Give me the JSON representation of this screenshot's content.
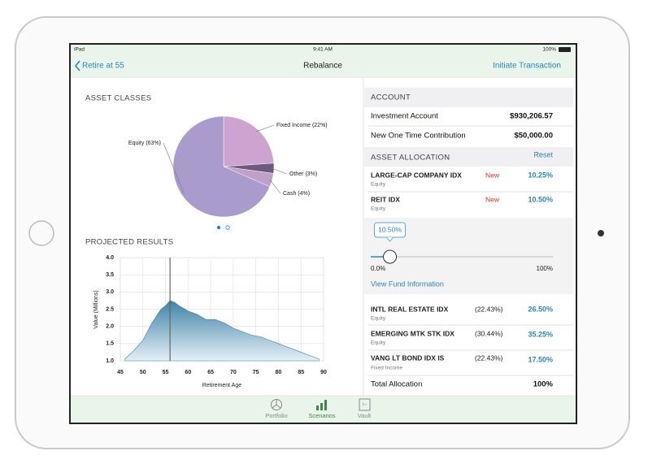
{
  "status_bar": {
    "device": "iPad",
    "time": "9:41 AM",
    "battery": "100%"
  },
  "nav_bar": {
    "back": "Retire at 55",
    "title": "Rebalance",
    "action": "Initiate Transaction"
  },
  "chart_data": [
    {
      "type": "pie",
      "title": "ASSET CLASSES",
      "values": [
        22,
        3,
        4,
        63
      ],
      "value_labels": [
        "Fixed Income (22%)",
        "Other (3%)",
        "Cash (4%)",
        "Equity (63%)"
      ],
      "colors": [
        "#cda3cf",
        "#6e5a7e",
        "#bfa0c8",
        "#a99bcb"
      ]
    },
    {
      "type": "area",
      "title": "PROJECTED RESULTS",
      "y_label": "Value (Millions)",
      "x_label": "Retirement Age",
      "x": [
        46,
        48,
        50,
        52,
        54,
        55,
        56,
        57,
        58,
        60,
        62,
        64,
        66,
        68,
        70,
        72,
        74,
        76,
        78,
        80,
        82,
        84,
        86,
        88,
        89
      ],
      "values": [
        1.05,
        1.3,
        1.6,
        2.1,
        2.5,
        2.6,
        2.75,
        2.7,
        2.6,
        2.45,
        2.35,
        2.2,
        2.2,
        2.1,
        1.95,
        1.85,
        1.75,
        1.7,
        1.6,
        1.5,
        1.4,
        1.3,
        1.2,
        1.1,
        1.05
      ],
      "marker_x": 56,
      "xlim": [
        45,
        90
      ],
      "ylim": [
        1.0,
        4.0
      ],
      "xticks": [
        45,
        50,
        55,
        60,
        65,
        70,
        75,
        80,
        85,
        90
      ],
      "yticks": [
        {
          "value": 1.0,
          "label": "1.0"
        },
        1.5,
        {
          "value": 2.0,
          "label": "2.0"
        },
        2.5,
        {
          "value": 3.0,
          "label": "3.0"
        },
        3.5,
        {
          "value": 4.0,
          "label": "4.0"
        }
      ],
      "grid": true,
      "color": "#3f82a6"
    }
  ],
  "account": {
    "header": "ACCOUNT",
    "rows": [
      {
        "label": "Investment Account",
        "value": "$930,206.57"
      },
      {
        "label": "New One Time Contribution",
        "value": "$50,000.00"
      }
    ]
  },
  "allocation": {
    "header": "ASSET ALLOCATION",
    "reset": "Reset",
    "funds": [
      {
        "name": "LARGE-CAP COMPANY IDX",
        "class": "Equity",
        "status": "New",
        "target": "10.25%"
      },
      {
        "name": "REIT IDX",
        "class": "Equity",
        "status": "New",
        "target": "10.50%"
      }
    ],
    "slider": {
      "value": 10.5,
      "label": "10.50%",
      "min": {
        "value": 0,
        "label": "0.0%"
      },
      "max": {
        "value": 100,
        "label": "100%"
      }
    },
    "link": "View Fund Information",
    "other_funds": [
      {
        "name": "INTL REAL ESTATE IDX",
        "class": "Equity",
        "current": "(22.43%)",
        "target": "26.50%"
      },
      {
        "name": "EMERGING MTK STK IDX",
        "class": "Equity",
        "current": "(30.44%)",
        "target": "35.25%"
      },
      {
        "name": "VANG LT BOND IDX IS",
        "class": "Fixed Income",
        "current": "(22.43%)",
        "target": "17.50%"
      }
    ],
    "total": {
      "label": "Total Allocation",
      "value": "100%"
    }
  },
  "tab_bar": [
    "Portfolio",
    "Scenarios",
    "Vault"
  ]
}
